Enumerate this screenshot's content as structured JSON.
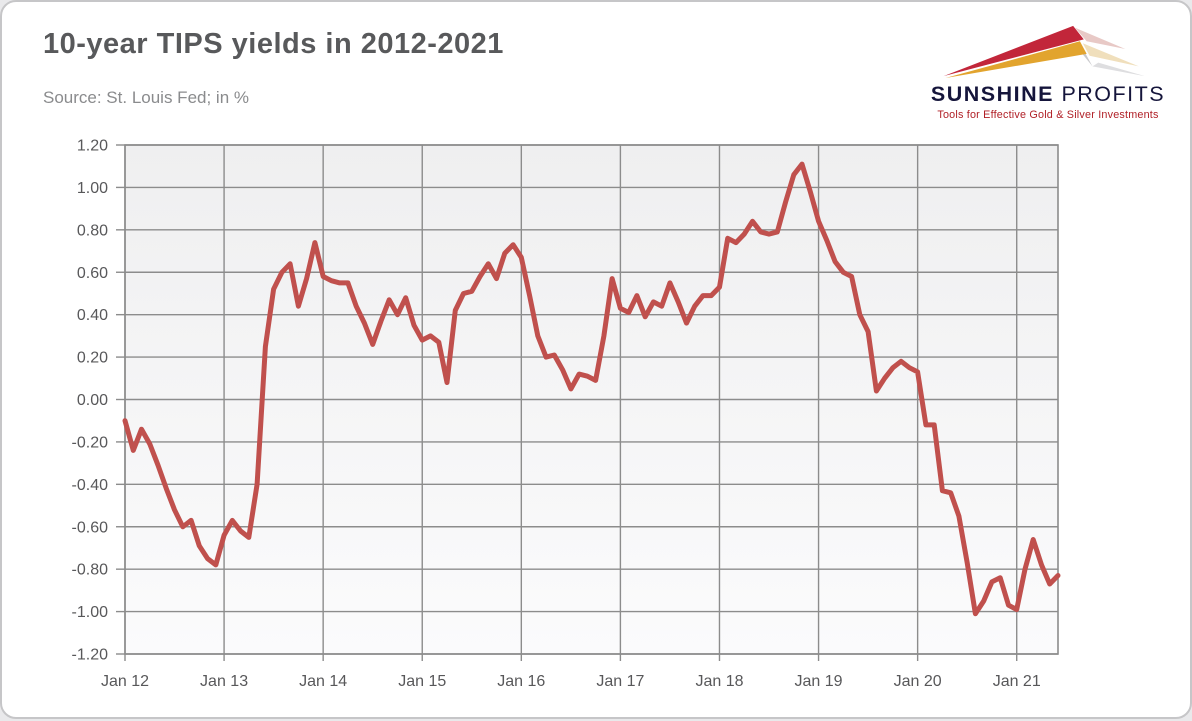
{
  "header": {
    "title": "10-year TIPS yields in 2012-2021",
    "source": "Source: St. Louis Fed; in %"
  },
  "logo": {
    "name_part1": "SUNSHINE",
    "name_part2": " PROFITS",
    "tagline": "Tools for Effective Gold & Silver Investments",
    "colors": {
      "wordmark_navy": "#15153B",
      "tagline_red": "#B01F26",
      "arrow_red": "#C2263A",
      "arrow_gold": "#E2A42E"
    }
  },
  "chart_data": {
    "type": "line",
    "title": "10-year TIPS yields in 2012-2021",
    "source_note": "Source: St. Louis Fed; in %",
    "unit": "%",
    "frequency": "monthly",
    "x_start": "Jan 2012",
    "x_end": "Jun 2021",
    "x_tick_labels": [
      "Jan 12",
      "Jan 13",
      "Jan 14",
      "Jan 15",
      "Jan 16",
      "Jan 17",
      "Jan 18",
      "Jan 19",
      "Jan 20",
      "Jan 21"
    ],
    "y_ticks": [
      1.2,
      1.0,
      0.8,
      0.6,
      0.4,
      0.2,
      0.0,
      -0.2,
      -0.4,
      -0.6,
      -0.8,
      -1.0,
      -1.2
    ],
    "ylim": [
      -1.2,
      1.2
    ],
    "grid": true,
    "legend": "none",
    "line_color": "#C0504D",
    "grid_color": "#8C8C8C",
    "axis_text_color": "#58585A",
    "plot_bg_top": "#EFEFF0",
    "plot_bg_bottom": "#FBFBFC",
    "series": [
      {
        "name": "10-year TIPS yield (%)",
        "values": [
          -0.1,
          -0.24,
          -0.14,
          -0.21,
          -0.31,
          -0.42,
          -0.52,
          -0.6,
          -0.57,
          -0.69,
          -0.75,
          -0.78,
          -0.64,
          -0.57,
          -0.62,
          -0.65,
          -0.4,
          0.25,
          0.52,
          0.6,
          0.64,
          0.44,
          0.57,
          0.74,
          0.58,
          0.56,
          0.55,
          0.55,
          0.44,
          0.36,
          0.26,
          0.37,
          0.47,
          0.4,
          0.48,
          0.35,
          0.28,
          0.3,
          0.27,
          0.08,
          0.42,
          0.5,
          0.51,
          0.58,
          0.64,
          0.57,
          0.69,
          0.73,
          0.67,
          0.49,
          0.3,
          0.2,
          0.21,
          0.14,
          0.05,
          0.12,
          0.11,
          0.09,
          0.3,
          0.57,
          0.43,
          0.41,
          0.49,
          0.39,
          0.46,
          0.44,
          0.55,
          0.46,
          0.36,
          0.44,
          0.49,
          0.49,
          0.53,
          0.76,
          0.74,
          0.78,
          0.84,
          0.79,
          0.78,
          0.79,
          0.93,
          1.06,
          1.11,
          0.98,
          0.84,
          0.75,
          0.65,
          0.6,
          0.58,
          0.4,
          0.32,
          0.04,
          0.1,
          0.15,
          0.18,
          0.15,
          0.13,
          -0.12,
          -0.12,
          -0.43,
          -0.44,
          -0.55,
          -0.77,
          -1.01,
          -0.95,
          -0.86,
          -0.84,
          -0.97,
          -0.99,
          -0.8,
          -0.66,
          -0.78,
          -0.87,
          -0.83
        ]
      }
    ]
  }
}
